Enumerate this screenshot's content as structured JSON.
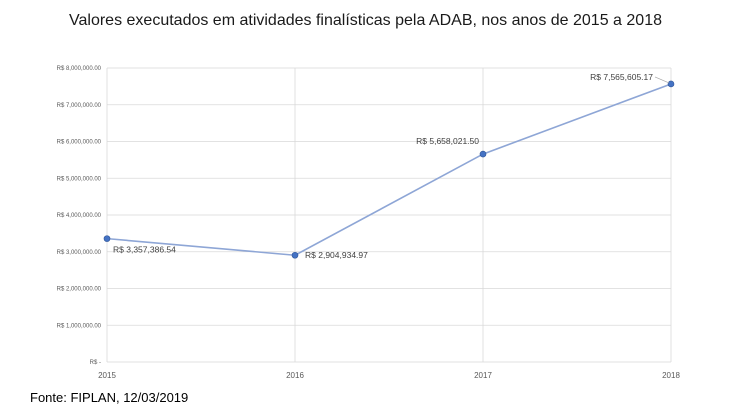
{
  "title": "Valores executados em atividades finalísticas pela ADAB, nos anos de 2015 a 2018",
  "source_note": "Fonte: FIPLAN, 12/03/2019",
  "colors": {
    "line": "#8ea6d6",
    "marker": "#4472c4",
    "grid": "#d9d9d9",
    "axis": "#bfbfbf",
    "leader": "#a6a6a6"
  },
  "chart_data": {
    "type": "line",
    "title": "Valores executados em atividades finalísticas pela ADAB, nos anos de 2015 a 2018",
    "xlabel": "",
    "ylabel": "",
    "categories": [
      "2015",
      "2016",
      "2017",
      "2018"
    ],
    "series": [
      {
        "values": [
          3357386.54,
          2904934.97,
          5658021.5,
          7565605.17
        ]
      }
    ],
    "data_labels": [
      "R$ 3,357,386.54",
      "R$ 2,904,934.97",
      "R$ 5,658,021.50",
      "R$ 7,565,605.17"
    ],
    "ylim": [
      0,
      8000000
    ],
    "y_ticks": [
      0,
      1000000,
      2000000,
      3000000,
      4000000,
      5000000,
      6000000,
      7000000,
      8000000
    ],
    "y_tick_labels": [
      "R$ -",
      "R$ 1,000,000.00",
      "R$ 2,000,000.00",
      "R$ 3,000,000.00",
      "R$ 4,000,000.00",
      "R$ 5,000,000.00",
      "R$ 6,000,000.00",
      "R$ 7,000,000.00",
      "R$ 8,000,000.00"
    ],
    "grid": true,
    "legend": "none"
  }
}
